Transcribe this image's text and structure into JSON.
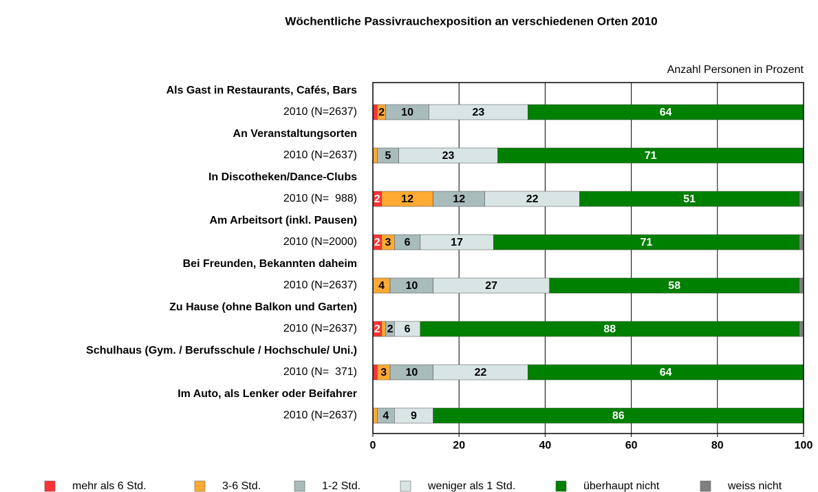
{
  "chart_data": {
    "type": "stacked_barh",
    "title": "Wöchentliche Passivrauchexposition an verschiedenen Orten 2010",
    "xlabel": "Anzahl Personen in Prozent",
    "group_labels": [
      "Als Gast in Restaurants, Cafés, Bars",
      "An Veranstaltungsorten",
      "In Discotheken/Dance-Clubs",
      "Am Arbeitsort (inkl. Pausen)",
      "Bei Freunden, Bekannten daheim",
      "Zu Hause (ohne Balkon und Garten)",
      "Schulhaus (Gym. / Berufsschule / Hochschule/ Uni.)",
      "Im Auto, als Lenker oder Beifahrer"
    ],
    "categories": [
      "2010 (N=2637)",
      "2010 (N=2637)",
      "2010 (N=  988)",
      "2010 (N=2000)",
      "2010 (N=2637)",
      "2010 (N=2637)",
      "2010 (N=  371)",
      "2010 (N=2637)"
    ],
    "series": [
      {
        "name": "mehr als 6 Std.",
        "color": "#ff3333",
        "values": [
          1,
          0,
          2,
          2,
          0,
          2,
          1,
          0
        ]
      },
      {
        "name": "3-6 Std.",
        "color": "#ffaa33",
        "values": [
          2,
          1,
          12,
          3,
          4,
          1,
          3,
          1
        ]
      },
      {
        "name": "1-2 Std.",
        "color": "#a9bcbc",
        "values": [
          10,
          5,
          12,
          6,
          10,
          2,
          10,
          4
        ]
      },
      {
        "name": "weniger als 1 Std.",
        "color": "#d9e5e5",
        "values": [
          23,
          23,
          22,
          17,
          27,
          6,
          22,
          9
        ]
      },
      {
        "name": "überhaupt nicht",
        "color": "#008000",
        "values": [
          64,
          71,
          51,
          71,
          58,
          88,
          64,
          86
        ]
      },
      {
        "name": "weiss nicht",
        "color": "#808080",
        "values": [
          0,
          0,
          1,
          1,
          1,
          1,
          0,
          0
        ]
      }
    ],
    "xlim": [
      0,
      100
    ],
    "xticks": [
      0,
      20,
      40,
      60,
      80,
      100
    ],
    "grid": true
  }
}
